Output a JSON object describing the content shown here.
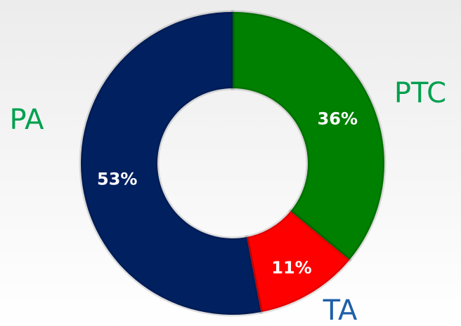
{
  "chart_data": {
    "type": "donut",
    "categories": [
      "PTC",
      "TA",
      "PA"
    ],
    "values": [
      36,
      11,
      53
    ],
    "value_labels": [
      "36%",
      "11%",
      "53%"
    ],
    "colors": [
      "#008000",
      "#ff0000",
      "#002060"
    ],
    "label_colors": [
      "#00a04f",
      "#1f5fa8",
      "#00a04f"
    ]
  }
}
